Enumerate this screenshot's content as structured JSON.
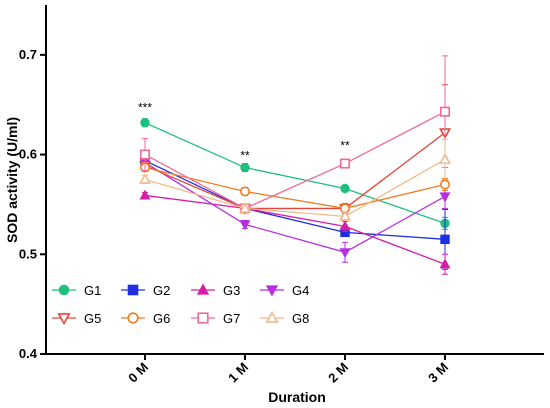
{
  "chart_data": {
    "type": "line",
    "xlabel": "Duration",
    "ylabel": "SOD activity (U/ml)",
    "categories": [
      "0 M",
      "1 M",
      "2 M",
      "3 M"
    ],
    "ylim": [
      0.4,
      0.75
    ],
    "yticks": [
      0.4,
      0.5,
      0.6,
      0.7
    ],
    "ytick_labels": [
      "0.4",
      "0.5",
      "0.6",
      "0.7"
    ],
    "grid": false,
    "legend_position": "bottom-left",
    "series": [
      {
        "name": "G1",
        "color": "#1fbf7f",
        "marker": "circle-filled",
        "values": [
          0.632,
          0.587,
          0.566,
          0.531
        ],
        "errors": [
          0.004,
          0.004,
          0.003,
          0.006
        ]
      },
      {
        "name": "G2",
        "color": "#1f2fe0",
        "marker": "square-filled",
        "values": [
          0.594,
          0.546,
          0.522,
          0.515
        ],
        "errors": [
          0.004,
          0.004,
          0.004,
          0.03
        ]
      },
      {
        "name": "G3",
        "color": "#d41ea6",
        "marker": "triangle-up-filled",
        "values": [
          0.559,
          0.546,
          0.528,
          0.49
        ],
        "errors": [
          0.003,
          0.003,
          0.005,
          0.01
        ]
      },
      {
        "name": "G4",
        "color": "#b52ee0",
        "marker": "triangle-down-filled",
        "values": [
          0.592,
          0.53,
          0.502,
          0.558
        ],
        "errors": [
          0.004,
          0.004,
          0.01,
          0.012
        ]
      },
      {
        "name": "G5",
        "color": "#e8443c",
        "marker": "triangle-down-open",
        "values": [
          0.589,
          0.546,
          0.546,
          0.622
        ],
        "errors": [
          0.004,
          0.004,
          0.005,
          0.048
        ]
      },
      {
        "name": "G6",
        "color": "#ee7d22",
        "marker": "circle-open",
        "values": [
          0.587,
          0.563,
          0.546,
          0.57
        ],
        "errors": [
          0.004,
          0.004,
          0.004,
          0.006
        ]
      },
      {
        "name": "G7",
        "color": "#ef6a95",
        "marker": "square-open",
        "values": [
          0.6,
          0.546,
          0.591,
          0.643
        ],
        "errors": [
          0.016,
          0.004,
          0.004,
          0.056
        ]
      },
      {
        "name": "G8",
        "color": "#f3b98a",
        "marker": "triangle-up-open",
        "values": [
          0.575,
          0.546,
          0.538,
          0.595
        ],
        "errors": [
          0.004,
          0.004,
          0.004,
          0.02
        ]
      }
    ],
    "annotations": [
      {
        "text": "***",
        "category": "0 M",
        "y": 0.643
      },
      {
        "text": "**",
        "category": "1 M",
        "y": 0.595
      },
      {
        "text": "**",
        "category": "2 M",
        "y": 0.605
      }
    ]
  }
}
